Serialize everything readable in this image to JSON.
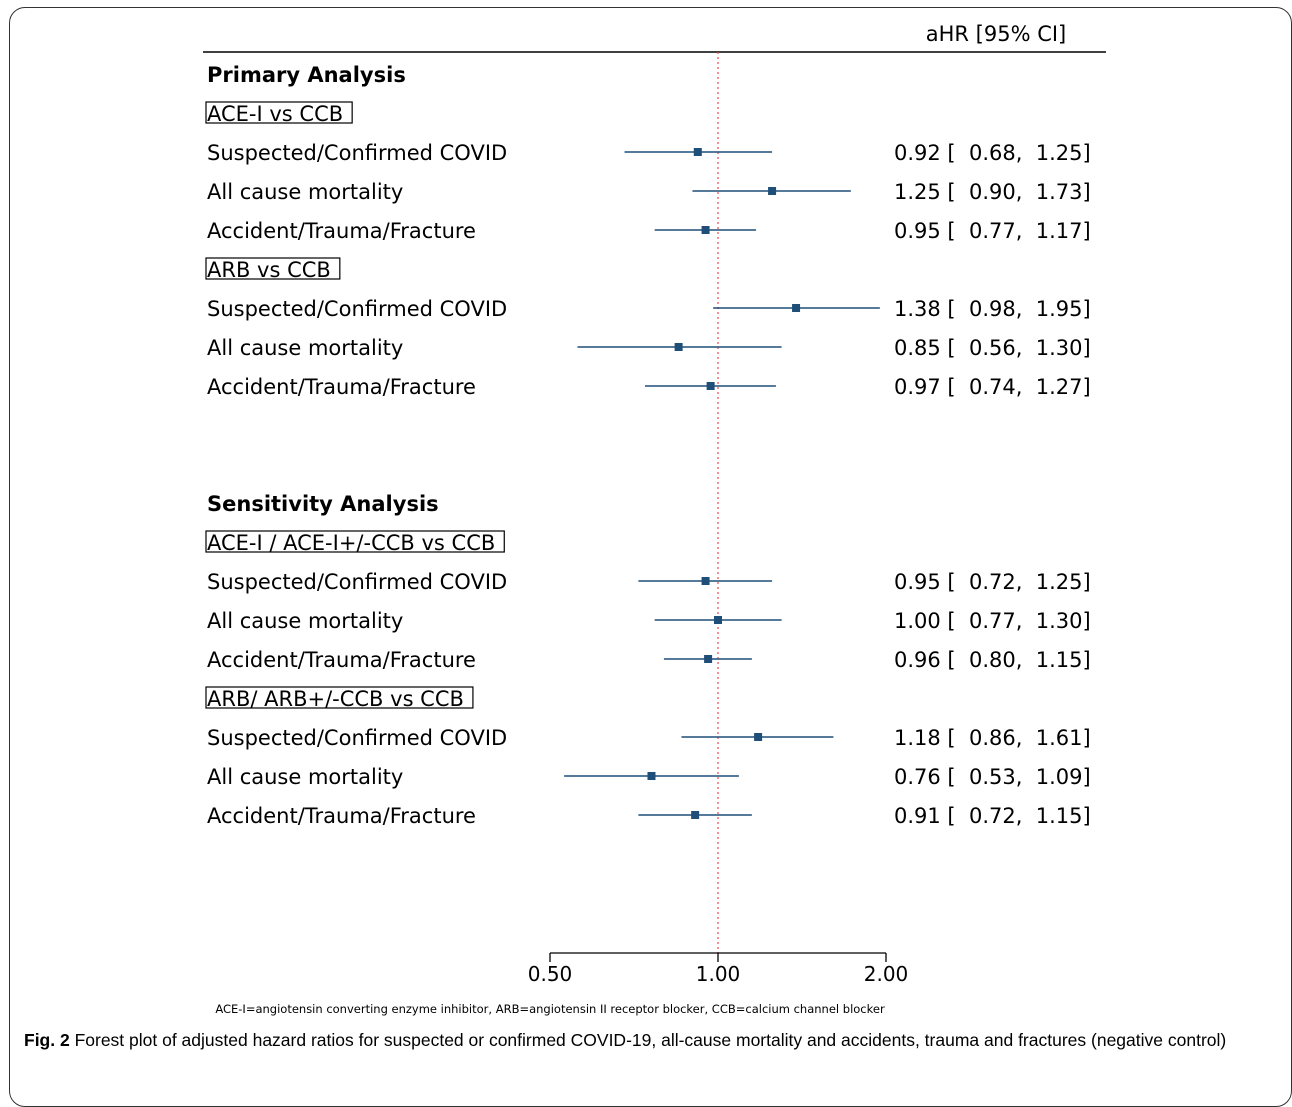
{
  "header": {
    "ci_column": "aHR [95% CI]"
  },
  "chart_data": {
    "type": "forest",
    "x_axis": {
      "scale": "log",
      "ticks": [
        0.5,
        1.0,
        2.0
      ],
      "tick_labels": [
        "0.50",
        "1.00",
        "2.00"
      ],
      "reference_line": 1.0
    },
    "colors": {
      "marker": "#1f4e79",
      "reference": "#e8474f"
    },
    "rows": [
      {
        "kind": "section",
        "text": "Primary Analysis"
      },
      {
        "kind": "group",
        "text": "ACE-I vs CCB"
      },
      {
        "kind": "est",
        "text": "Suspected/Confirmed COVID",
        "hr": 0.92,
        "lo": 0.68,
        "hi": 1.25,
        "ci": "0.92 [  0.68,  1.25]"
      },
      {
        "kind": "est",
        "text": "All cause mortality",
        "hr": 1.25,
        "lo": 0.9,
        "hi": 1.73,
        "ci": "1.25 [  0.90,  1.73]"
      },
      {
        "kind": "est",
        "text": "Accident/Trauma/Fracture",
        "hr": 0.95,
        "lo": 0.77,
        "hi": 1.17,
        "ci": "0.95 [  0.77,  1.17]"
      },
      {
        "kind": "group",
        "text": "ARB vs CCB"
      },
      {
        "kind": "est",
        "text": "Suspected/Confirmed COVID",
        "hr": 1.38,
        "lo": 0.98,
        "hi": 1.95,
        "ci": "1.38 [  0.98,  1.95]"
      },
      {
        "kind": "est",
        "text": "All cause mortality",
        "hr": 0.85,
        "lo": 0.56,
        "hi": 1.3,
        "ci": "0.85 [  0.56,  1.30]"
      },
      {
        "kind": "est",
        "text": "Accident/Trauma/Fracture",
        "hr": 0.97,
        "lo": 0.74,
        "hi": 1.27,
        "ci": "0.97 [  0.74,  1.27]"
      },
      {
        "kind": "blank"
      },
      {
        "kind": "blank"
      },
      {
        "kind": "section",
        "text": "Sensitivity Analysis"
      },
      {
        "kind": "group",
        "text": "ACE-I / ACE-I+/-CCB vs CCB"
      },
      {
        "kind": "est",
        "text": "Suspected/Confirmed COVID",
        "hr": 0.95,
        "lo": 0.72,
        "hi": 1.25,
        "ci": "0.95 [  0.72,  1.25]"
      },
      {
        "kind": "est",
        "text": "All cause mortality",
        "hr": 1.0,
        "lo": 0.77,
        "hi": 1.3,
        "ci": "1.00 [  0.77,  1.30]"
      },
      {
        "kind": "est",
        "text": "Accident/Trauma/Fracture",
        "hr": 0.96,
        "lo": 0.8,
        "hi": 1.15,
        "ci": "0.96 [  0.80,  1.15]"
      },
      {
        "kind": "group",
        "text": "ARB/ ARB+/-CCB vs CCB"
      },
      {
        "kind": "est",
        "text": "Suspected/Confirmed COVID",
        "hr": 1.18,
        "lo": 0.86,
        "hi": 1.61,
        "ci": "1.18 [  0.86,  1.61]"
      },
      {
        "kind": "est",
        "text": "All cause mortality",
        "hr": 0.76,
        "lo": 0.53,
        "hi": 1.09,
        "ci": "0.76 [  0.53,  1.09]"
      },
      {
        "kind": "est",
        "text": "Accident/Trauma/Fracture",
        "hr": 0.91,
        "lo": 0.72,
        "hi": 1.15,
        "ci": "0.91 [  0.72,  1.15]"
      }
    ]
  },
  "abbreviations": "ACE-I=angiotensin converting enzyme inhibitor, ARB=angiotensin II receptor blocker, CCB=calcium channel blocker",
  "caption": {
    "fig_label": "Fig. 2",
    "text": " Forest plot of adjusted hazard ratios for suspected or confirmed COVID-19, all-cause mortality and accidents, trauma and fractures (negative control)"
  }
}
